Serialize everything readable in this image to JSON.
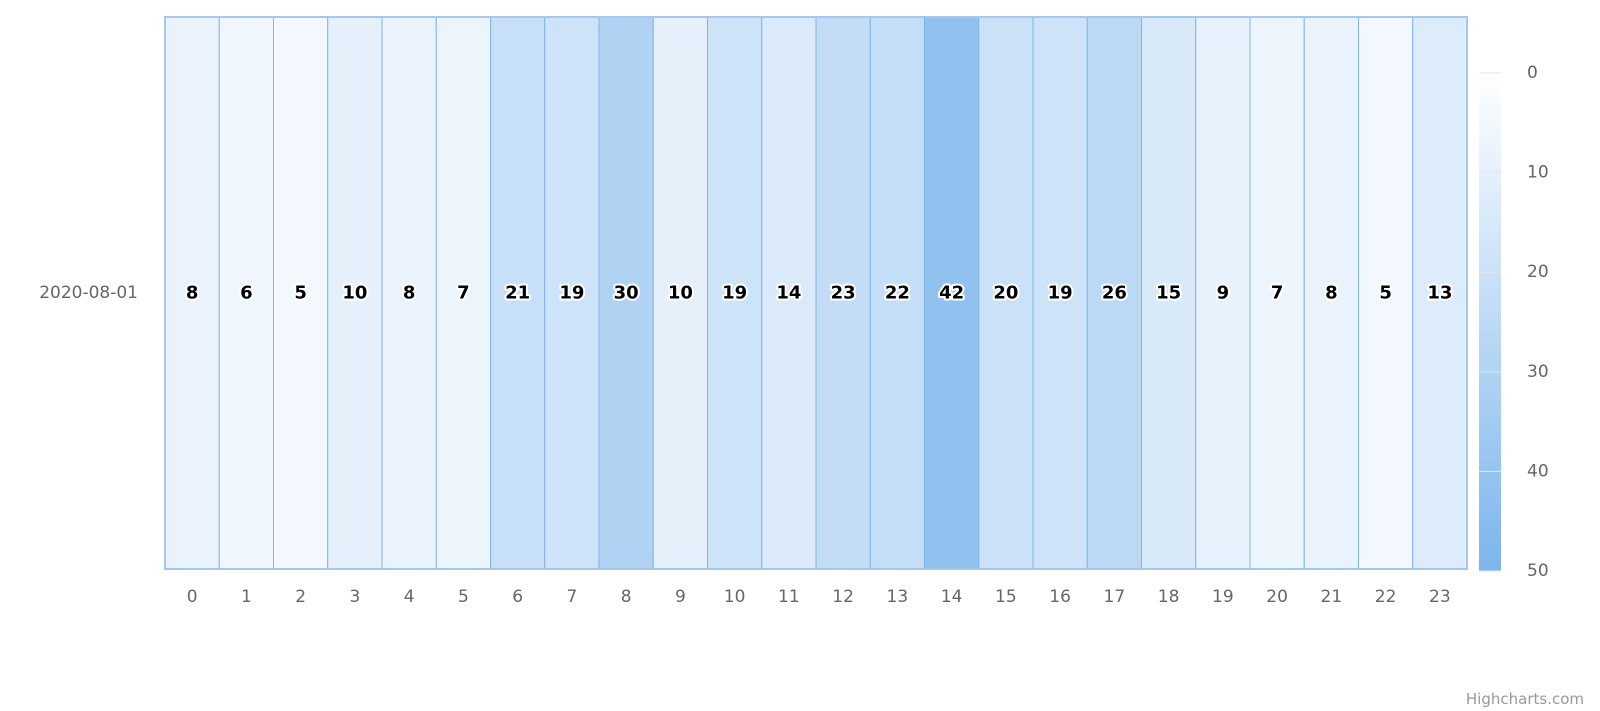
{
  "chart_data": {
    "type": "heatmap",
    "title": "",
    "xlabel": "",
    "ylabel": "",
    "x_categories": [
      "0",
      "1",
      "2",
      "3",
      "4",
      "5",
      "6",
      "7",
      "8",
      "9",
      "10",
      "11",
      "12",
      "13",
      "14",
      "15",
      "16",
      "17",
      "18",
      "19",
      "20",
      "21",
      "22",
      "23"
    ],
    "y_categories": [
      "2020-08-01"
    ],
    "values": [
      8,
      6,
      5,
      10,
      8,
      7,
      21,
      19,
      30,
      10,
      19,
      14,
      23,
      22,
      42,
      20,
      19,
      26,
      15,
      9,
      7,
      8,
      5,
      13
    ],
    "color_axis": {
      "min": 0,
      "max": 50,
      "ticks": [
        0,
        10,
        20,
        30,
        40,
        50
      ],
      "min_color": "#ffffff",
      "max_color": "#7cb5ec",
      "placement": "right"
    },
    "border_color": "#7cb5ec",
    "legend_placement": "right"
  },
  "credits": "Highcharts.com"
}
